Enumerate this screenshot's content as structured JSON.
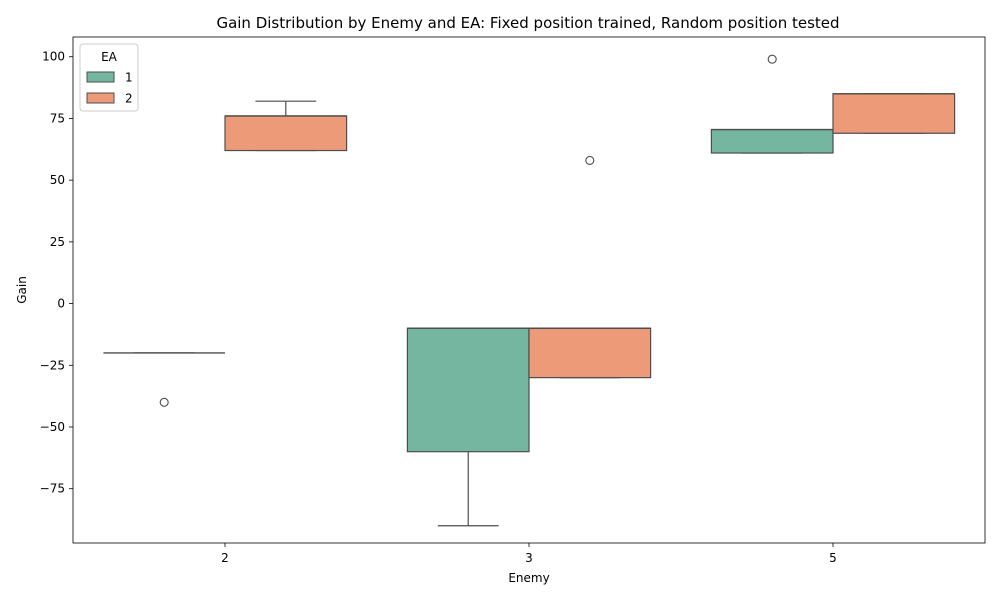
{
  "chart_data": {
    "type": "box",
    "title": "Gain Distribution by Enemy and EA: Fixed position trained, Random position tested",
    "xlabel": "Enemy",
    "ylabel": "Gain",
    "categories": [
      "2",
      "3",
      "5"
    ],
    "ylim": [
      -97,
      108
    ],
    "yticks": [
      100,
      75,
      50,
      25,
      0,
      -25,
      -50,
      -75
    ],
    "ytick_labels": [
      "100",
      "75",
      "50",
      "25",
      "0",
      "−25",
      "−50",
      "−75"
    ],
    "legend": {
      "title": "EA",
      "position": "top-left"
    },
    "grid": false,
    "series": [
      {
        "name": "1",
        "color": "#75b6a1",
        "boxes": [
          {
            "category": "2",
            "whisker_low": -20,
            "q1": -20,
            "median": -20,
            "q3": -20,
            "whisker_high": -20,
            "outliers": [
              -40
            ]
          },
          {
            "category": "3",
            "whisker_low": -90,
            "q1": -60,
            "median": -10,
            "q3": -10,
            "whisker_high": -10,
            "outliers": []
          },
          {
            "category": "5",
            "whisker_low": 61,
            "q1": 61,
            "median": 70.5,
            "q3": 70.5,
            "whisker_high": 70.5,
            "outliers": [
              99
            ]
          }
        ]
      },
      {
        "name": "2",
        "color": "#ec9a77",
        "boxes": [
          {
            "category": "2",
            "whisker_low": 62,
            "q1": 62,
            "median": 76,
            "q3": 76,
            "whisker_high": 82,
            "outliers": []
          },
          {
            "category": "3",
            "whisker_low": -30,
            "q1": -30,
            "median": -10,
            "q3": -10,
            "whisker_high": -10,
            "outliers": [
              58
            ]
          },
          {
            "category": "5",
            "whisker_low": 69,
            "q1": 69,
            "median": 85,
            "q3": 85,
            "whisker_high": 85,
            "outliers": []
          }
        ]
      }
    ]
  }
}
